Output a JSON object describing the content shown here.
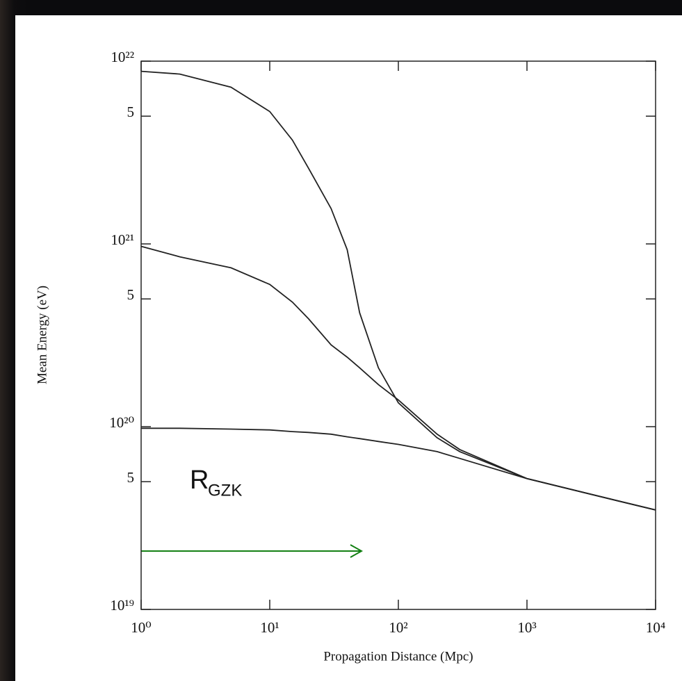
{
  "chart_data": {
    "type": "line",
    "x_label": "Propagation Distance (Mpc)",
    "y_label": "Mean Energy (eV)",
    "xscale": "log",
    "yscale": "log",
    "xlim": [
      1,
      10000
    ],
    "ylim": [
      1e+19,
      1e+22
    ],
    "xticks": [
      {
        "value": 1,
        "label": "10⁰"
      },
      {
        "value": 10,
        "label": "10¹"
      },
      {
        "value": 100,
        "label": "10²"
      },
      {
        "value": 1000,
        "label": "10³"
      },
      {
        "value": 10000,
        "label": "10⁴"
      }
    ],
    "yticks": [
      {
        "value": 1e+19,
        "label": "10¹⁹"
      },
      {
        "value": 5e+19,
        "label": "5"
      },
      {
        "value": 1e+20,
        "label": "10²⁰"
      },
      {
        "value": 5e+20,
        "label": "5"
      },
      {
        "value": 1e+21,
        "label": "10²¹"
      },
      {
        "value": 5e+21,
        "label": "5"
      },
      {
        "value": 1e+22,
        "label": "10²²"
      }
    ],
    "x": [
      1,
      2,
      5,
      10,
      15,
      20,
      30,
      40,
      50,
      70,
      100,
      200,
      300,
      1000,
      3000,
      10000
    ],
    "series": [
      {
        "color": "#222222",
        "values": [
          8.8e+21,
          8.5e+21,
          7.2e+21,
          5.3e+21,
          3.7e+21,
          2.6e+21,
          1.56e+21,
          9.3e+20,
          4.2e+20,
          2.1e+20,
          1.35e+20,
          8.7e+19,
          7.3e+19,
          5.2e+19,
          4.3e+19,
          3.5e+19
        ]
      },
      {
        "color": "#222222",
        "values": [
          9.7e+20,
          8.5e+20,
          7.4e+20,
          6e+20,
          4.8e+20,
          3.9e+20,
          2.8e+20,
          2.4e+20,
          2.1e+20,
          1.7e+20,
          1.4e+20,
          9.1e+19,
          7.5e+19,
          5.2e+19,
          4.3e+19,
          3.5e+19
        ]
      },
      {
        "color": "#222222",
        "values": [
          9.8e+19,
          9.8e+19,
          9.7e+19,
          9.6e+19,
          9.4e+19,
          9.3e+19,
          9.1e+19,
          8.8e+19,
          8.6e+19,
          8.3e+19,
          8e+19,
          7.3e+19,
          6.7e+19,
          5.2e+19,
          4.3e+19,
          3.5e+19
        ]
      }
    ],
    "annotation": {
      "text": "R",
      "subscript": "GZK",
      "color": "#138013"
    }
  }
}
